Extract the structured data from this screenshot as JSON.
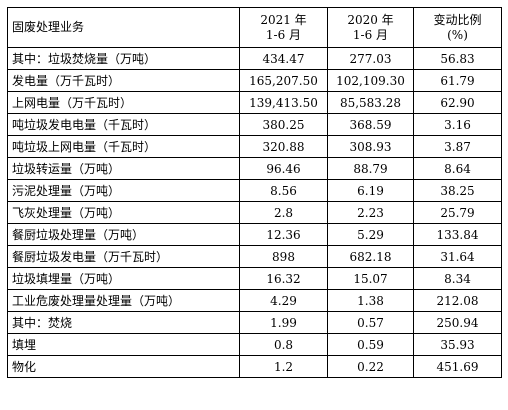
{
  "table": {
    "headers": [
      [
        "固废处理业务"
      ],
      [
        "2021 年",
        "1-6 月"
      ],
      [
        "2020 年",
        "1-6 月"
      ],
      [
        "变动比例",
        "(%)"
      ]
    ],
    "rows": [
      [
        "其中：垃圾焚烧量（万吨）",
        "434.47",
        "277.03",
        "56.83"
      ],
      [
        "发电量（万千瓦时）",
        "165,207.50",
        "102,109.30",
        "61.79"
      ],
      [
        "上网电量（万千瓦时）",
        "139,413.50",
        "85,583.28",
        "62.90"
      ],
      [
        "吨垃圾发电电量（千瓦时）",
        "380.25",
        "368.59",
        "3.16"
      ],
      [
        "吨垃圾上网电量（千瓦时）",
        "320.88",
        "308.93",
        "3.87"
      ],
      [
        "垃圾转运量（万吨）",
        "96.46",
        "88.79",
        "8.64"
      ],
      [
        "污泥处理量（万吨）",
        "8.56",
        "6.19",
        "38.25"
      ],
      [
        "飞灰处理量（万吨）",
        "2.8",
        "2.23",
        "25.79"
      ],
      [
        "餐厨垃圾处理量（万吨）",
        "12.36",
        "5.29",
        "133.84"
      ],
      [
        "餐厨垃圾发电量（万千瓦时）",
        "898",
        "682.18",
        "31.64"
      ],
      [
        "垃圾填埋量（万吨）",
        "16.32",
        "15.07",
        "8.34"
      ],
      [
        "工业危废处理量处理量（万吨）",
        "4.29",
        "1.38",
        "212.08"
      ],
      [
        "其中：焚烧",
        "1.99",
        "0.57",
        "250.94"
      ],
      [
        "填埋",
        "0.8",
        "0.59",
        "35.93"
      ],
      [
        "物化",
        "1.2",
        "0.22",
        "451.69"
      ]
    ]
  }
}
